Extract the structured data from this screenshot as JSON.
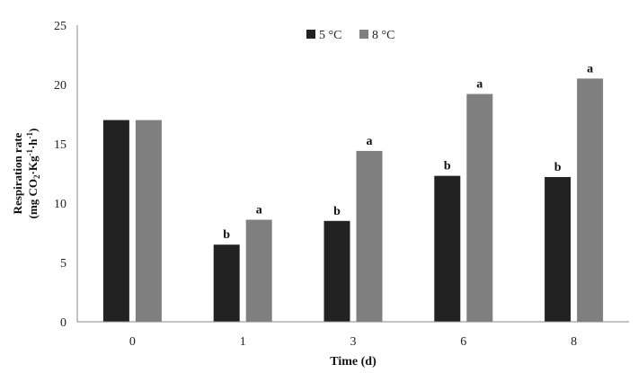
{
  "chart_data": {
    "type": "bar",
    "title": "",
    "xlabel": "Time (d)",
    "ylabel_line1": "Respiration rate",
    "ylabel_line2_parts": [
      "(mg CO",
      "2",
      "·Kg",
      "-1",
      "·h",
      "-1",
      ")"
    ],
    "categories": [
      "0",
      "1",
      "3",
      "6",
      "8"
    ],
    "ylim": [
      0,
      25
    ],
    "yticks": [
      "0",
      "5",
      "10",
      "15",
      "20",
      "25"
    ],
    "legend_position": "top-center",
    "series": [
      {
        "name": "5 °C",
        "color": "#222222",
        "values": [
          17.0,
          6.5,
          8.5,
          12.3,
          12.2
        ],
        "labels": [
          "",
          "b",
          "b",
          "b",
          "b"
        ]
      },
      {
        "name": "8 °C",
        "color": "#7f7f7f",
        "values": [
          17.0,
          8.6,
          14.4,
          19.2,
          20.5
        ],
        "labels": [
          "",
          "a",
          "a",
          "a",
          "a"
        ]
      }
    ]
  }
}
